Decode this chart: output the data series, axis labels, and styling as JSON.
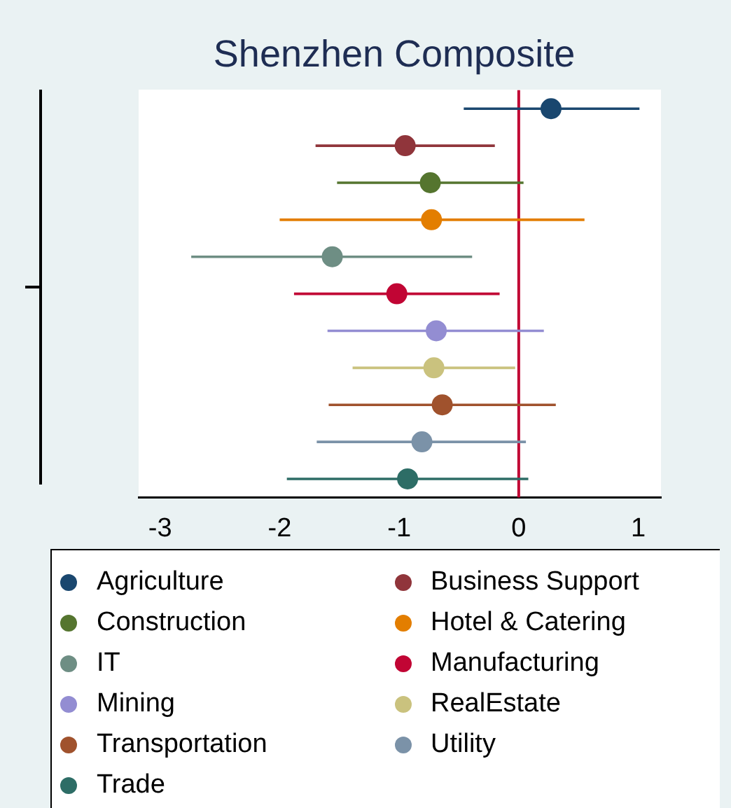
{
  "chart_data": {
    "type": "scatter",
    "title": "Shenzhen Composite",
    "orientation": "horizontal",
    "categories": [
      null,
      null,
      null,
      null,
      null,
      null,
      null,
      null,
      null,
      null,
      null
    ],
    "xlim": [
      -3.18,
      1.19
    ],
    "xticks": [
      -3,
      -2,
      -1,
      0,
      1
    ],
    "tick_labels": "x",
    "grid": false,
    "legend": "bottom",
    "marker": "circle",
    "ref_lines": [
      {
        "axis": "x",
        "value": 0,
        "color": "#c10534"
      }
    ],
    "series": [
      {
        "name": "Agriculture",
        "color": "#1a476f",
        "values": [
          0.27,
          null,
          null,
          null,
          null,
          null,
          null,
          null,
          null,
          null,
          null
        ],
        "errors": [
          [
            -0.46,
            1.01
          ],
          null,
          null,
          null,
          null,
          null,
          null,
          null,
          null,
          null,
          null
        ]
      },
      {
        "name": "Business Support",
        "color": "#90353b",
        "values": [
          null,
          -0.95,
          null,
          null,
          null,
          null,
          null,
          null,
          null,
          null,
          null
        ],
        "errors": [
          null,
          [
            -1.7,
            -0.2
          ],
          null,
          null,
          null,
          null,
          null,
          null,
          null,
          null,
          null
        ]
      },
      {
        "name": "Construction",
        "color": "#55752f",
        "values": [
          null,
          null,
          -0.74,
          null,
          null,
          null,
          null,
          null,
          null,
          null,
          null
        ],
        "errors": [
          null,
          null,
          [
            -1.52,
            0.04
          ],
          null,
          null,
          null,
          null,
          null,
          null,
          null,
          null
        ]
      },
      {
        "name": "Hotel & Catering",
        "color": "#e37e00",
        "values": [
          null,
          null,
          null,
          -0.73,
          null,
          null,
          null,
          null,
          null,
          null,
          null
        ],
        "errors": [
          null,
          null,
          null,
          [
            -2.0,
            0.55
          ],
          null,
          null,
          null,
          null,
          null,
          null,
          null
        ]
      },
      {
        "name": "IT",
        "color": "#6e8e84",
        "values": [
          null,
          null,
          null,
          null,
          -1.56,
          null,
          null,
          null,
          null,
          null,
          null
        ],
        "errors": [
          null,
          null,
          null,
          null,
          [
            -2.74,
            -0.39
          ],
          null,
          null,
          null,
          null,
          null,
          null
        ]
      },
      {
        "name": "Manufacturing",
        "color": "#c10534",
        "values": [
          null,
          null,
          null,
          null,
          null,
          -1.02,
          null,
          null,
          null,
          null,
          null
        ],
        "errors": [
          null,
          null,
          null,
          null,
          null,
          [
            -1.88,
            -0.16
          ],
          null,
          null,
          null,
          null,
          null
        ]
      },
      {
        "name": "Mining",
        "color": "#938dd2",
        "values": [
          null,
          null,
          null,
          null,
          null,
          null,
          -0.69,
          null,
          null,
          null,
          null
        ],
        "errors": [
          null,
          null,
          null,
          null,
          null,
          null,
          [
            -1.6,
            0.21
          ],
          null,
          null,
          null,
          null
        ]
      },
      {
        "name": "RealEstate",
        "color": "#cac27e",
        "values": [
          null,
          null,
          null,
          null,
          null,
          null,
          null,
          -0.71,
          null,
          null,
          null
        ],
        "errors": [
          null,
          null,
          null,
          null,
          null,
          null,
          null,
          [
            -1.39,
            -0.03
          ],
          null,
          null,
          null
        ]
      },
      {
        "name": "Transportation",
        "color": "#a0522d",
        "values": [
          null,
          null,
          null,
          null,
          null,
          null,
          null,
          null,
          -0.64,
          null,
          null
        ],
        "errors": [
          null,
          null,
          null,
          null,
          null,
          null,
          null,
          null,
          [
            -1.59,
            0.31
          ],
          null,
          null
        ]
      },
      {
        "name": "Utility",
        "color": "#7b92a8",
        "values": [
          null,
          null,
          null,
          null,
          null,
          null,
          null,
          null,
          null,
          -0.81,
          null
        ],
        "errors": [
          null,
          null,
          null,
          null,
          null,
          null,
          null,
          null,
          null,
          [
            -1.69,
            0.06
          ],
          null
        ]
      },
      {
        "name": "Trade",
        "color": "#2d6d66",
        "values": [
          null,
          null,
          null,
          null,
          null,
          null,
          null,
          null,
          null,
          null,
          -0.93
        ],
        "errors": [
          null,
          null,
          null,
          null,
          null,
          null,
          null,
          null,
          null,
          null,
          [
            -1.94,
            0.08
          ]
        ]
      }
    ]
  }
}
